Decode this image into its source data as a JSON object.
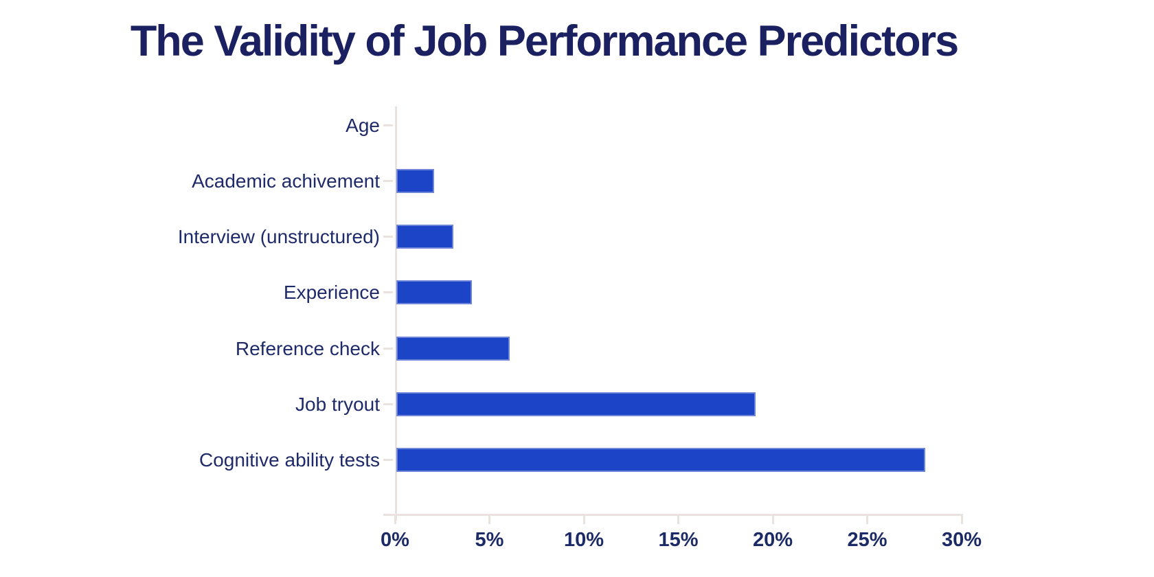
{
  "chart_data": {
    "type": "bar",
    "orientation": "horizontal",
    "title": "The Validity of Job Performance Predictors",
    "categories": [
      "Age",
      "Academic achivement",
      "Interview (unstructured)",
      "Experience",
      "Reference check",
      "Job tryout",
      "Cognitive ability tests"
    ],
    "values": [
      0,
      2,
      3,
      4,
      6,
      19,
      28
    ],
    "unit": "%",
    "xlabel": "",
    "ylabel": "",
    "xlim": [
      0,
      30
    ],
    "x_ticks": [
      {
        "value": 0,
        "label": "0%"
      },
      {
        "value": 5,
        "label": "5%"
      },
      {
        "value": 10,
        "label": "10%"
      },
      {
        "value": 15,
        "label": "15%"
      },
      {
        "value": 20,
        "label": "20%"
      },
      {
        "value": 25,
        "label": "25%"
      },
      {
        "value": 30,
        "label": "30%"
      }
    ],
    "grid": false,
    "legend": false,
    "colors": {
      "background": "#ffffff",
      "bar": "#1b44c7",
      "bar_edge": "#7d91da",
      "axis": "#e9e2de",
      "title_text": "#1a2060",
      "category_label_text": "#1e2a69",
      "tick_label_text": "#1c2a66"
    }
  }
}
